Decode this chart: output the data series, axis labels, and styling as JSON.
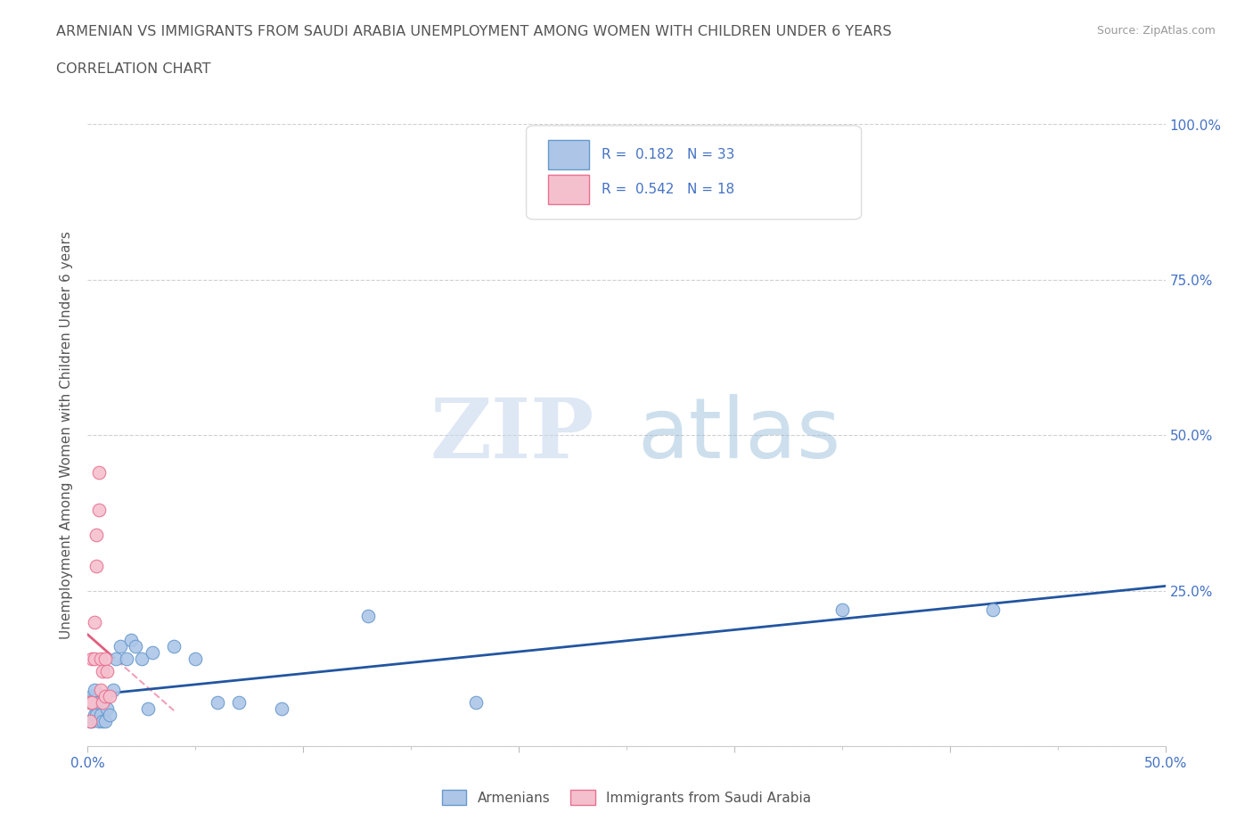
{
  "title_line1": "ARMENIAN VS IMMIGRANTS FROM SAUDI ARABIA UNEMPLOYMENT AMONG WOMEN WITH CHILDREN UNDER 6 YEARS",
  "title_line2": "CORRELATION CHART",
  "source": "Source: ZipAtlas.com",
  "ylabel": "Unemployment Among Women with Children Under 6 years",
  "xlim": [
    0,
    0.5
  ],
  "ylim": [
    0,
    1.0
  ],
  "xtick_positions": [
    0.0,
    0.1,
    0.2,
    0.3,
    0.4,
    0.5
  ],
  "xtick_labels": [
    "0.0%",
    "",
    "",
    "",
    "",
    "50.0%"
  ],
  "ytick_positions": [
    0.0,
    0.25,
    0.5,
    0.75,
    1.0
  ],
  "ytick_labels_right": [
    "",
    "25.0%",
    "50.0%",
    "75.0%",
    "100.0%"
  ],
  "armenian_color": "#adc6e8",
  "armenian_edge_color": "#6699cc",
  "saudi_color": "#f5c0ce",
  "saudi_edge_color": "#e87090",
  "trend_armenian_color": "#2255a0",
  "trend_saudi_color": "#e06080",
  "trend_saudi_dash_color": "#f0a0b8",
  "legend_label_armenian": "Armenians",
  "legend_label_saudi": "Immigrants from Saudi Arabia",
  "R_armenian": 0.182,
  "N_armenian": 33,
  "R_saudi": 0.542,
  "N_saudi": 18,
  "watermark_zip": "ZIP",
  "watermark_atlas": "atlas",
  "title_color": "#555555",
  "axis_label_color": "#555555",
  "tick_color": "#4472c4",
  "grid_color": "#d0d0d0",
  "armenian_x": [
    0.001,
    0.001,
    0.002,
    0.002,
    0.003,
    0.003,
    0.004,
    0.005,
    0.005,
    0.006,
    0.007,
    0.007,
    0.008,
    0.009,
    0.01,
    0.012,
    0.013,
    0.015,
    0.018,
    0.02,
    0.022,
    0.025,
    0.028,
    0.03,
    0.04,
    0.05,
    0.06,
    0.07,
    0.09,
    0.13,
    0.18,
    0.35,
    0.42
  ],
  "armenian_y": [
    0.04,
    0.07,
    0.04,
    0.08,
    0.05,
    0.09,
    0.05,
    0.04,
    0.07,
    0.05,
    0.04,
    0.07,
    0.04,
    0.06,
    0.05,
    0.09,
    0.14,
    0.16,
    0.14,
    0.17,
    0.16,
    0.14,
    0.06,
    0.15,
    0.16,
    0.14,
    0.07,
    0.07,
    0.06,
    0.21,
    0.07,
    0.22,
    0.22
  ],
  "saudi_x": [
    0.001,
    0.001,
    0.002,
    0.002,
    0.003,
    0.003,
    0.004,
    0.004,
    0.005,
    0.005,
    0.006,
    0.006,
    0.007,
    0.007,
    0.008,
    0.008,
    0.009,
    0.01
  ],
  "saudi_y": [
    0.04,
    0.07,
    0.07,
    0.14,
    0.14,
    0.2,
    0.29,
    0.34,
    0.38,
    0.44,
    0.09,
    0.14,
    0.07,
    0.12,
    0.08,
    0.14,
    0.12,
    0.08
  ]
}
